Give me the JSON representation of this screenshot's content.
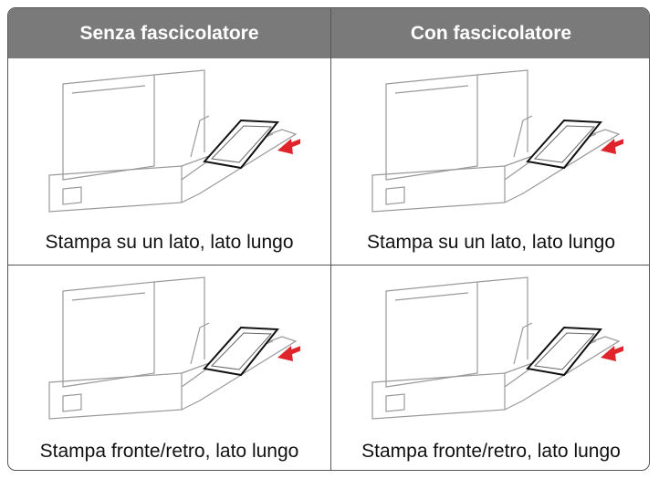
{
  "table": {
    "header": [
      "Senza fascicolatore",
      "Con fascicolatore"
    ],
    "rows": [
      [
        "Stampa su un lato, lato lungo",
        "Stampa su un lato, lato lungo"
      ],
      [
        "Stampa fronte/retro, lato lungo",
        "Stampa fronte/retro, lato lungo"
      ]
    ]
  }
}
